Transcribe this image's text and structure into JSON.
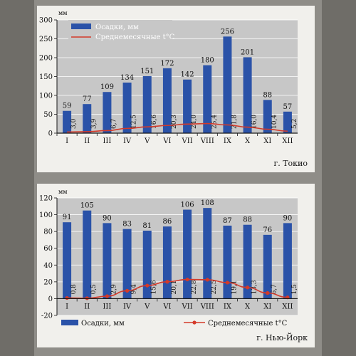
{
  "months": [
    "I",
    "II",
    "III",
    "IV",
    "V",
    "VI",
    "VII",
    "VIII",
    "IX",
    "X",
    "XI",
    "XII"
  ],
  "colors": {
    "bar": "#2a52a8",
    "temp_line": "#d43a2a",
    "plot_bg": "#c7c7c7",
    "panel_bg": "#f1f0ec",
    "axis": "#1a1a1a"
  },
  "chart_data": [
    {
      "type": "bar",
      "city": "г. Токио",
      "y_unit": "мм",
      "legend": {
        "bars": "Осадки, мм",
        "line": "Среднемесячные t°C",
        "placement": "top-left"
      },
      "categories": [
        "I",
        "II",
        "III",
        "IV",
        "V",
        "VI",
        "VII",
        "VIII",
        "IX",
        "X",
        "XI",
        "XII"
      ],
      "precipitation": [
        59,
        77,
        109,
        134,
        151,
        172,
        142,
        180,
        256,
        201,
        88,
        57
      ],
      "temperature": [
        3.0,
        3.9,
        6.7,
        12.5,
        16.6,
        20.3,
        24.0,
        25.4,
        21.8,
        16.0,
        10.4,
        5.2
      ],
      "temperature_labels": [
        "3,0",
        "3,9",
        "6,7",
        "12,5",
        "16,6",
        "20,3",
        "24,0",
        "25,4",
        "21,8",
        "16,0",
        "10,4",
        "5,2"
      ],
      "yticks": [
        0,
        50,
        100,
        150,
        200,
        250,
        300
      ],
      "ylim": [
        0,
        300
      ],
      "grid": true
    },
    {
      "type": "bar",
      "city": "г. Нью-Йорк",
      "y_unit": "мм",
      "legend": {
        "bars": "Осадки, мм",
        "line": "Среднемесячные t°C",
        "placement": "bottom"
      },
      "categories": [
        "I",
        "II",
        "III",
        "IV",
        "V",
        "VI",
        "VII",
        "VIII",
        "IX",
        "X",
        "XI",
        "XII"
      ],
      "precipitation": [
        91,
        105,
        90,
        83,
        81,
        86,
        106,
        108,
        87,
        88,
        76,
        90
      ],
      "temperature": [
        0.8,
        0.5,
        2.9,
        9.4,
        15.6,
        20.1,
        22.8,
        22.5,
        19.1,
        13.3,
        6.7,
        1.5
      ],
      "temperature_labels": [
        "0,8",
        "0,5",
        "2,9",
        "9,4",
        "15,6",
        "20,1",
        "22,8",
        "22,5",
        "19,1",
        "13,3",
        "6,7",
        "1,5"
      ],
      "yticks": [
        -20,
        0,
        20,
        40,
        60,
        80,
        100,
        120
      ],
      "ylim": [
        -20,
        120
      ],
      "grid": true
    }
  ]
}
